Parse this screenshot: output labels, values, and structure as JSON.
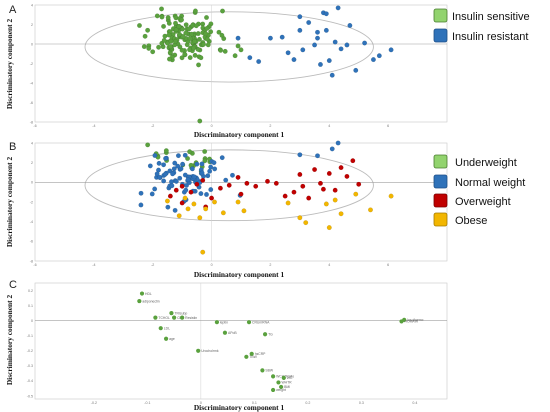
{
  "figure": {
    "panels": [
      {
        "letter": "A"
      },
      {
        "letter": "B"
      },
      {
        "letter": "C"
      }
    ]
  },
  "colors": {
    "insulin_sensitive": "#5aa13e",
    "insulin_resistant": "#2f72b9",
    "underweight": "#5aa13e",
    "normal_weight": "#2f72b9",
    "overweight": "#c00000",
    "obese": "#f2b600",
    "loading_point": "#5aa13e",
    "legend_green": "#92d36e",
    "legend_blue": "#2f72b9",
    "legend_red": "#c00000",
    "legend_yellow": "#f2b600"
  },
  "chart_data": [
    {
      "type": "scatter",
      "panel": "A",
      "xlabel": "Discriminatory component 1",
      "ylabel": "Discriminatory component 2",
      "xlim": [
        -6,
        8
      ],
      "ylim": [
        -8,
        4
      ],
      "xticks": [
        "-6",
        "-4",
        "-2",
        "0",
        "2",
        "4",
        "6"
      ],
      "yticks": [
        "4",
        "2",
        "0",
        "-2",
        "-4",
        "-6",
        "-8"
      ],
      "ellipse": {
        "cx": 0.6,
        "cy": -0.3,
        "rx": 4.9,
        "ry": 3.6
      },
      "grid": false,
      "legend_position": "right",
      "series": [
        {
          "name": "Insulin sensitive",
          "color_key": "insulin_sensitive",
          "cluster": {
            "n": 150,
            "cx": -0.9,
            "cy": 0.7,
            "sx": 0.55,
            "sy": 1.35,
            "seed": 11
          },
          "points": [
            [
              -0.4,
              -7.9
            ],
            [
              -1.7,
              3.6
            ],
            [
              0.8,
              -1.2
            ],
            [
              1.0,
              -0.6
            ],
            [
              0.9,
              -0.2
            ]
          ]
        },
        {
          "name": "Insulin resistant",
          "color_key": "insulin_resistant",
          "points": [
            [
              0.9,
              0.6
            ],
            [
              1.3,
              -1.4
            ],
            [
              1.6,
              -1.8
            ],
            [
              2.0,
              0.6
            ],
            [
              2.4,
              0.7
            ],
            [
              2.6,
              -0.9
            ],
            [
              2.8,
              -1.6
            ],
            [
              3.0,
              2.8
            ],
            [
              3.0,
              1.4
            ],
            [
              3.1,
              -0.6
            ],
            [
              3.3,
              2.2
            ],
            [
              3.5,
              -0.1
            ],
            [
              3.6,
              0.6
            ],
            [
              3.6,
              1.2
            ],
            [
              3.7,
              -2.1
            ],
            [
              3.8,
              3.2
            ],
            [
              3.9,
              1.4
            ],
            [
              4.0,
              -1.7
            ],
            [
              4.1,
              -3.2
            ],
            [
              4.2,
              0.2
            ],
            [
              4.3,
              3.7
            ],
            [
              4.6,
              -0.1
            ],
            [
              4.7,
              1.9
            ],
            [
              4.9,
              -2.7
            ],
            [
              5.2,
              0.1
            ],
            [
              5.5,
              -1.6
            ],
            [
              5.7,
              -1.2
            ],
            [
              6.1,
              -0.6
            ],
            [
              4.4,
              -0.5
            ],
            [
              3.9,
              3.1
            ]
          ]
        }
      ]
    },
    {
      "type": "scatter",
      "panel": "B",
      "xlabel": "Discriminatory component 1",
      "ylabel": "Discriminatory component 2",
      "xlim": [
        -6,
        8
      ],
      "ylim": [
        -8,
        4
      ],
      "xticks": [
        "-6",
        "-4",
        "-2",
        "0",
        "2",
        "4",
        "6"
      ],
      "yticks": [
        "4",
        "2",
        "0",
        "-2",
        "-4",
        "-6",
        "-8"
      ],
      "ellipse": {
        "cx": 0.6,
        "cy": -0.3,
        "rx": 4.9,
        "ry": 3.6
      },
      "grid": false,
      "legend_position": "right",
      "series": [
        {
          "name": "Underweight",
          "color_key": "underweight",
          "cluster": {
            "n": 22,
            "cx": -0.7,
            "cy": 2.6,
            "sx": 0.7,
            "sy": 0.7,
            "seed": 3
          },
          "points": []
        },
        {
          "name": "Normal weight",
          "color_key": "normal_weight",
          "cluster": {
            "n": 85,
            "cx": -0.9,
            "cy": 0.5,
            "sx": 0.6,
            "sy": 1.2,
            "seed": 7
          },
          "points": [
            [
              -2.4,
              -2.3
            ],
            [
              3.6,
              2.7
            ],
            [
              4.1,
              3.4
            ],
            [
              4.3,
              4.0
            ],
            [
              3.0,
              2.8
            ]
          ]
        },
        {
          "name": "Overweight",
          "color_key": "overweight",
          "points": [
            [
              -1.2,
              -0.8
            ],
            [
              -1.4,
              -1.4
            ],
            [
              -1.0,
              -2.1
            ],
            [
              -0.7,
              -1.0
            ],
            [
              -0.5,
              -0.2
            ],
            [
              -0.3,
              0.2
            ],
            [
              0.3,
              -0.6
            ],
            [
              0.6,
              -0.3
            ],
            [
              0.9,
              0.5
            ],
            [
              1.0,
              -1.2
            ],
            [
              1.2,
              -0.1
            ],
            [
              1.5,
              -0.4
            ],
            [
              1.9,
              0.1
            ],
            [
              2.2,
              -0.1
            ],
            [
              2.5,
              -1.4
            ],
            [
              2.8,
              -1.0
            ],
            [
              3.0,
              0.8
            ],
            [
              3.1,
              -0.4
            ],
            [
              3.3,
              -1.6
            ],
            [
              3.5,
              1.3
            ],
            [
              3.7,
              -0.1
            ],
            [
              3.8,
              -0.7
            ],
            [
              4.0,
              0.9
            ],
            [
              4.2,
              -0.8
            ],
            [
              4.4,
              1.5
            ],
            [
              4.6,
              0.6
            ],
            [
              5.0,
              -0.2
            ],
            [
              4.8,
              2.2
            ],
            [
              -1.0,
              -0.4
            ],
            [
              0.0,
              -1.6
            ],
            [
              -0.2,
              -2.5
            ]
          ]
        },
        {
          "name": "Obese",
          "color_key": "obese",
          "points": [
            [
              -1.5,
              -1.9
            ],
            [
              -1.1,
              -3.4
            ],
            [
              -0.8,
              -2.7
            ],
            [
              -0.6,
              -2.2
            ],
            [
              -0.4,
              -3.6
            ],
            [
              -0.2,
              -2.7
            ],
            [
              0.1,
              -2.0
            ],
            [
              0.4,
              -3.1
            ],
            [
              0.9,
              -2.0
            ],
            [
              1.1,
              -2.9
            ],
            [
              -0.3,
              -7.1
            ],
            [
              2.6,
              -2.1
            ],
            [
              3.0,
              -3.6
            ],
            [
              3.2,
              -4.1
            ],
            [
              3.9,
              -2.2
            ],
            [
              4.2,
              -1.8
            ],
            [
              4.4,
              -3.2
            ],
            [
              4.9,
              -1.2
            ],
            [
              5.4,
              -2.8
            ],
            [
              6.1,
              -1.4
            ],
            [
              4.0,
              -4.6
            ],
            [
              -0.9,
              -1.6
            ]
          ]
        }
      ]
    },
    {
      "type": "scatter",
      "panel": "C",
      "xlabel": "Discriminatory component 1",
      "ylabel": "Discriminatory component 2",
      "xlim": [
        -0.31,
        0.46
      ],
      "ylim": [
        -0.52,
        0.25
      ],
      "xticks": [
        "-0.2",
        "-0.1",
        "0",
        "0.1",
        "0.2",
        "0.3",
        "0.4"
      ],
      "yticks": [
        "0.2",
        "0.1",
        "0",
        "-0.1",
        "-0.2",
        "-0.3",
        "-0.4",
        "-0.5"
      ],
      "grid": false,
      "points": [
        {
          "label": "HDL",
          "x": -0.11,
          "y": 0.18
        },
        {
          "label": "adiponectin",
          "x": -0.115,
          "y": 0.13
        },
        {
          "label": "TRIsubp",
          "x": -0.055,
          "y": 0.05
        },
        {
          "label": "TCHOL",
          "x": -0.085,
          "y": 0.02
        },
        {
          "label": "CDS",
          "x": -0.05,
          "y": 0.02
        },
        {
          "label": "Resistin",
          "x": -0.035,
          "y": 0.02
        },
        {
          "label": "leptin",
          "x": 0.03,
          "y": -0.01
        },
        {
          "label": "LDL",
          "x": -0.075,
          "y": -0.05
        },
        {
          "label": "age",
          "x": -0.065,
          "y": -0.12
        },
        {
          "label": "APoB",
          "x": 0.045,
          "y": -0.08
        },
        {
          "label": "CRUmRNA",
          "x": 0.09,
          "y": -0.01
        },
        {
          "label": "TG",
          "x": 0.12,
          "y": -0.09
        },
        {
          "label": "Urocholrmk",
          "x": -0.005,
          "y": -0.2
        },
        {
          "label": "TBW",
          "x": 0.085,
          "y": -0.24
        },
        {
          "label": "hsCRP",
          "x": 0.095,
          "y": -0.22
        },
        {
          "label": "SBW",
          "x": 0.115,
          "y": -0.33
        },
        {
          "label": "WCHTRatio",
          "x": 0.135,
          "y": -0.37
        },
        {
          "label": "WHTR",
          "x": 0.145,
          "y": -0.41
        },
        {
          "label": "WC",
          "x": 0.155,
          "y": -0.38
        },
        {
          "label": "BMI",
          "x": 0.15,
          "y": -0.44
        },
        {
          "label": "weight",
          "x": 0.135,
          "y": -0.46
        },
        {
          "label": "Insulinemc",
          "x": 0.38,
          "y": 0.005
        },
        {
          "label": "HOMAIR",
          "x": 0.375,
          "y": -0.005
        }
      ]
    }
  ]
}
